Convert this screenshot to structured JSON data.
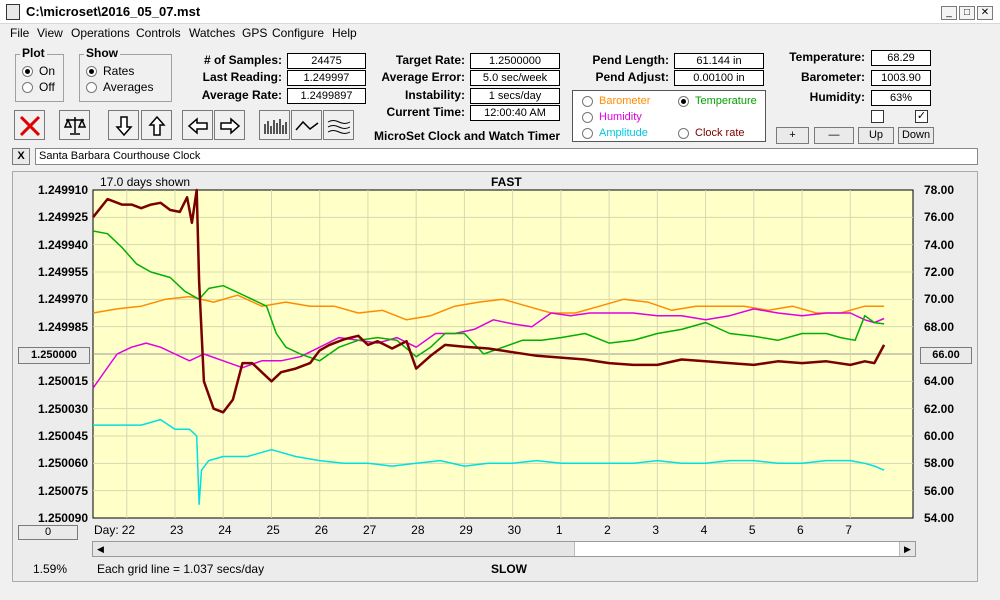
{
  "window": {
    "title": "C:\\microset\\2016_05_07.mst"
  },
  "menu": [
    "File",
    "View",
    "Operations",
    "Controls",
    "Watches",
    "GPS",
    "Configure",
    "Help"
  ],
  "plot_group": {
    "label": "Plot",
    "on": "On",
    "off": "Off",
    "selected": "On"
  },
  "show_group": {
    "label": "Show",
    "rates": "Rates",
    "averages": "Averages",
    "selected": "Rates"
  },
  "stats": {
    "samples_label": "# of Samples:",
    "samples": "24475",
    "last_reading_label": "Last Reading:",
    "last_reading": "1.249997",
    "average_rate_label": "Average Rate:",
    "average_rate": "1.2499897"
  },
  "target": {
    "target_rate_label": "Target Rate:",
    "target_rate": "1.2500000",
    "average_error_label": "Average Error:",
    "average_error": "5.0 sec/week",
    "instability_label": "Instability:",
    "instability": "1 secs/day",
    "current_time_label": "Current Time:",
    "current_time": "12:00:40 AM",
    "app_name": "MicroSet Clock and Watch Timer"
  },
  "pendulum": {
    "length_label": "Pend Length:",
    "length": "61.144 in",
    "adjust_label": "Pend Adjust:",
    "adjust": "0.00100 in"
  },
  "display_options": {
    "barometer": "Barometer",
    "temperature": "Temperature",
    "humidity": "Humidity",
    "amplitude": "Amplitude",
    "clock_rate": "Clock rate",
    "selected": "Temperature"
  },
  "environment": {
    "temperature_label": "Temperature:",
    "temperature": "68.29",
    "barometer_label": "Barometer:",
    "barometer": "1003.90",
    "humidity_label": "Humidity:",
    "humidity": "63%"
  },
  "scale_buttons": {
    "plus": "+",
    "minus": "—",
    "up": "Up",
    "down": "Down"
  },
  "clock_name": {
    "close": "X",
    "value": "Santa Barbara Courthouse Clock"
  },
  "chart_header": {
    "days_shown": "17.0 days shown",
    "fast": "FAST",
    "slow": "SLOW"
  },
  "footer": {
    "percent": "1.59%",
    "grid_line": "Each grid line = 1.037 secs/day",
    "zero_button": "0",
    "left_button": "1.250000",
    "right_button": "66.00"
  },
  "colors": {
    "plot_bg": "#ffffc8",
    "rate": "#7a0000",
    "temperature": "#00b000",
    "humidity": "#e000e0",
    "barometer": "#ff8c00",
    "amplitude": "#00e0e0"
  },
  "chart_data": {
    "type": "line",
    "xlabel": "Day:",
    "x_ticks": [
      "22",
      "23",
      "24",
      "25",
      "26",
      "27",
      "28",
      "29",
      "30",
      "1",
      "2",
      "3",
      "4",
      "5",
      "6",
      "7"
    ],
    "x_range": [
      21.3,
      38.3
    ],
    "y_left_ticks": [
      "1.249910",
      "1.249925",
      "1.249940",
      "1.249955",
      "1.249970",
      "1.249985",
      "1.250000",
      "1.250015",
      "1.250030",
      "1.250045",
      "1.250060",
      "1.250075",
      "1.250090"
    ],
    "y_left_range": [
      1.24991,
      1.25009
    ],
    "y_left_inverted": true,
    "y_right_ticks": [
      "78.00",
      "76.00",
      "74.00",
      "72.00",
      "70.00",
      "68.00",
      "66.00",
      "64.00",
      "62.00",
      "60.00",
      "58.00",
      "56.00",
      "54.00"
    ],
    "y_right_range": [
      54,
      78
    ],
    "grid": true,
    "series": [
      {
        "key": "rate",
        "axis": "left",
        "color": "#7a0000",
        "width": 2.5,
        "x": [
          21.3,
          21.6,
          21.9,
          22.1,
          22.3,
          22.5,
          22.7,
          22.9,
          23.1,
          23.25,
          23.35,
          23.45,
          23.5,
          23.6,
          23.8,
          24.0,
          24.2,
          24.4,
          24.6,
          24.8,
          25.0,
          25.2,
          25.5,
          25.8,
          26.0,
          26.2,
          26.5,
          26.8,
          27.0,
          27.2,
          27.5,
          27.8,
          28.0,
          28.3,
          28.6,
          29.0,
          29.5,
          30.0,
          30.5,
          31.0,
          31.5,
          32.0,
          32.5,
          33.0,
          33.5,
          34.0,
          34.5,
          35.0,
          35.5,
          36.0,
          36.5,
          37.0,
          37.3,
          37.5,
          37.6,
          37.7
        ],
        "y": [
          1.249925,
          1.249915,
          1.249918,
          1.249918,
          1.24992,
          1.249918,
          1.249917,
          1.249921,
          1.249922,
          1.249914,
          1.249928,
          1.24991,
          1.24996,
          1.250015,
          1.25003,
          1.250032,
          1.250025,
          1.250005,
          1.250005,
          1.25001,
          1.250015,
          1.25001,
          1.250008,
          1.250005,
          1.249998,
          1.249995,
          1.249992,
          1.24999,
          1.249995,
          1.249993,
          1.249997,
          1.249993,
          1.250008,
          1.250001,
          1.249995,
          1.249996,
          1.249997,
          1.249999,
          1.250001,
          1.250002,
          1.250003,
          1.250005,
          1.250006,
          1.250006,
          1.250003,
          1.250004,
          1.250005,
          1.250006,
          1.250004,
          1.250005,
          1.250004,
          1.250006,
          1.250004,
          1.250005,
          1.25,
          1.249995
        ]
      },
      {
        "key": "temperature",
        "axis": "right",
        "color": "#00b000",
        "width": 1.5,
        "x": [
          21.3,
          21.6,
          21.9,
          22.2,
          22.5,
          22.9,
          23.2,
          23.5,
          23.7,
          24.0,
          24.3,
          24.6,
          24.9,
          25.1,
          25.3,
          25.6,
          26.0,
          26.4,
          26.8,
          27.2,
          27.6,
          28.0,
          28.3,
          28.6,
          29.0,
          29.4,
          29.8,
          30.2,
          30.6,
          31.0,
          31.5,
          32.0,
          32.5,
          33.0,
          33.5,
          34.0,
          34.5,
          35.0,
          35.5,
          36.0,
          36.5,
          36.8,
          37.1,
          37.3,
          37.5,
          37.7
        ],
        "y": [
          75.0,
          74.8,
          73.8,
          72.6,
          72.0,
          71.6,
          70.6,
          70.0,
          70.8,
          71.0,
          70.5,
          70.0,
          69.5,
          67.5,
          66.5,
          66.0,
          65.5,
          66.5,
          67.0,
          67.2,
          67.0,
          65.8,
          66.5,
          67.5,
          67.5,
          66.0,
          66.5,
          67.0,
          67.0,
          67.2,
          67.5,
          66.8,
          67.0,
          67.5,
          67.8,
          68.3,
          67.5,
          67.3,
          67.0,
          67.5,
          67.5,
          67.2,
          67.0,
          68.8,
          68.3,
          68.2
        ]
      },
      {
        "key": "humidity",
        "axis": "right",
        "color": "#e000e0",
        "width": 1.5,
        "x": [
          21.3,
          21.5,
          21.8,
          22.1,
          22.4,
          22.7,
          23.0,
          23.3,
          23.6,
          24.0,
          24.4,
          24.8,
          25.2,
          25.6,
          26.0,
          26.4,
          26.8,
          27.2,
          27.6,
          28.0,
          28.4,
          28.8,
          29.2,
          29.6,
          30.0,
          30.4,
          30.8,
          31.2,
          31.6,
          32.0,
          32.5,
          33.0,
          33.5,
          34.0,
          34.5,
          35.0,
          35.5,
          36.0,
          36.5,
          37.0,
          37.3,
          37.5,
          37.7
        ],
        "y": [
          63.5,
          64.5,
          66.0,
          66.5,
          66.8,
          66.5,
          66.0,
          65.5,
          66.0,
          65.5,
          65.0,
          65.5,
          65.5,
          65.8,
          66.5,
          67.2,
          67.0,
          66.8,
          67.2,
          66.5,
          67.5,
          67.5,
          67.8,
          68.5,
          68.2,
          68.0,
          69.0,
          68.8,
          69.0,
          69.0,
          69.0,
          68.8,
          68.8,
          68.5,
          68.8,
          69.3,
          69.0,
          68.8,
          69.0,
          69.0,
          68.5,
          68.3,
          68.6
        ]
      },
      {
        "key": "barometer",
        "axis": "right",
        "color": "#ff8c00",
        "width": 1.5,
        "x": [
          21.3,
          21.8,
          22.3,
          22.8,
          23.3,
          23.8,
          24.3,
          24.8,
          25.3,
          25.8,
          26.3,
          26.8,
          27.3,
          27.8,
          28.3,
          28.8,
          29.3,
          29.8,
          30.3,
          30.8,
          31.3,
          31.8,
          32.3,
          32.8,
          33.3,
          33.8,
          34.3,
          34.8,
          35.3,
          35.8,
          36.3,
          36.8,
          37.3,
          37.7
        ],
        "y": [
          69.0,
          69.3,
          69.5,
          70.0,
          70.2,
          69.8,
          70.3,
          69.5,
          69.8,
          69.5,
          69.5,
          69.0,
          69.2,
          68.5,
          68.8,
          69.5,
          69.8,
          70.0,
          69.5,
          69.0,
          69.0,
          69.5,
          70.0,
          69.8,
          69.2,
          69.5,
          69.5,
          69.5,
          69.2,
          69.5,
          69.0,
          69.0,
          69.5,
          69.5
        ]
      },
      {
        "key": "amplitude",
        "axis": "right",
        "color": "#00e0e0",
        "width": 1.5,
        "x": [
          21.3,
          21.8,
          22.3,
          22.7,
          23.0,
          23.3,
          23.45,
          23.5,
          23.55,
          23.7,
          24.0,
          24.5,
          25.0,
          25.5,
          26.0,
          26.5,
          27.0,
          27.5,
          28.0,
          28.5,
          29.0,
          29.5,
          30.0,
          30.5,
          31.0,
          31.5,
          32.0,
          32.5,
          33.0,
          33.5,
          34.0,
          34.5,
          35.0,
          35.5,
          36.0,
          36.5,
          37.0,
          37.3,
          37.5,
          37.7
        ],
        "y": [
          60.8,
          60.8,
          60.8,
          61.2,
          60.5,
          60.5,
          60.0,
          55.0,
          57.5,
          58.2,
          58.5,
          58.5,
          59.0,
          58.5,
          58.2,
          58.0,
          58.0,
          57.8,
          58.0,
          58.2,
          57.8,
          58.0,
          58.0,
          58.2,
          58.0,
          58.0,
          58.0,
          58.0,
          58.2,
          58.0,
          58.0,
          58.2,
          58.2,
          58.0,
          58.0,
          58.2,
          58.2,
          58.0,
          57.8,
          57.5
        ]
      }
    ]
  }
}
